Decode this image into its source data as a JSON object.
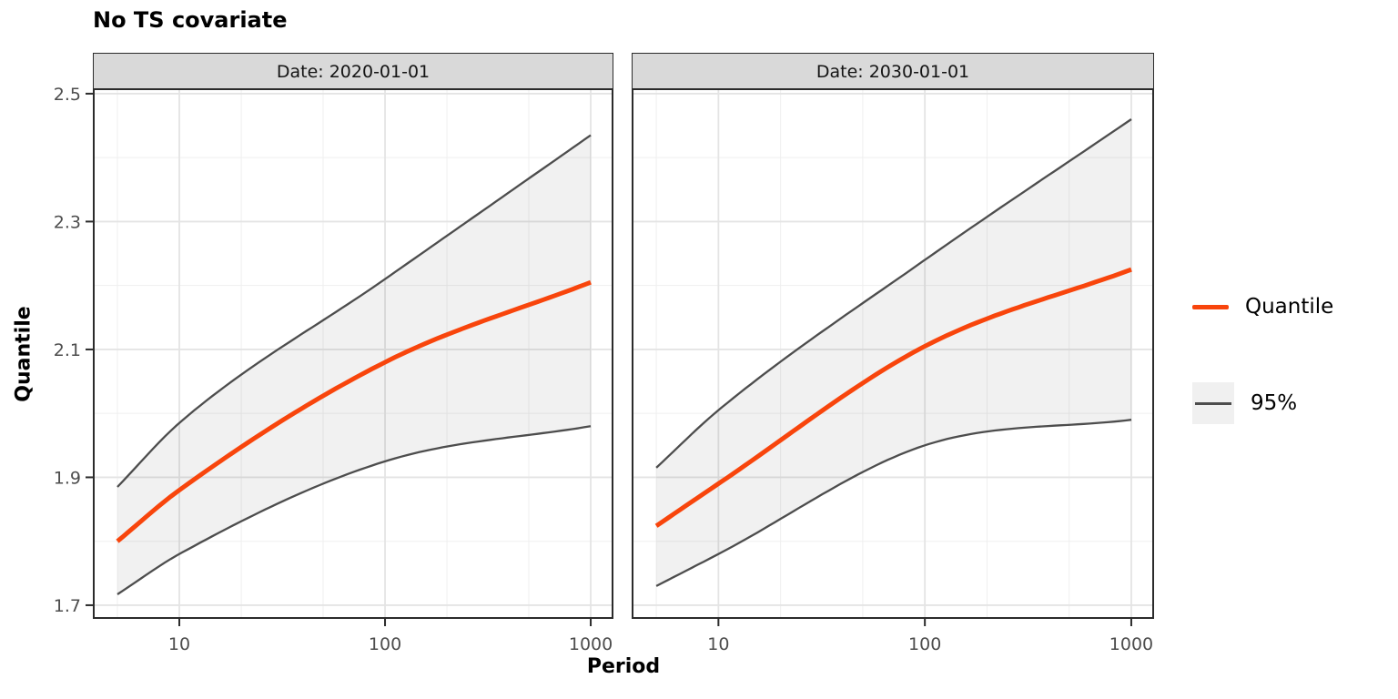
{
  "title": "No TS covariate",
  "axes": {
    "x": {
      "title": "Period",
      "scale": "log10",
      "tick_labels": [
        "10",
        "100",
        "1000"
      ]
    },
    "y": {
      "title": "Quantile",
      "tick_labels": [
        "1.7",
        "1.9",
        "2.1",
        "2.3",
        "2.5"
      ]
    }
  },
  "legend": {
    "position": "right",
    "items": [
      {
        "label": "Quantile",
        "type": "line",
        "color": "#F8450C"
      },
      {
        "label": "95%",
        "type": "ribbon",
        "line_color": "#4D4D4D",
        "fill": "#F0F0F0"
      }
    ]
  },
  "colors": {
    "quantile_line": "#F8450C",
    "ci_line": "#4D4D4D",
    "ribbon_fill": "rgba(0,0,0,0.055)",
    "strip_fill": "#D9D9D9",
    "panel_border": "#2b2b2b",
    "grid_major": "#E4E4E4",
    "grid_minor": "#EFEFEF",
    "tick_label": "#4D4D4D"
  },
  "chart_data": {
    "type": "line",
    "title": "No TS covariate",
    "xlabel": "Period",
    "ylabel": "Quantile",
    "x_scale": "log10",
    "x_breaks": [
      10,
      100,
      1000
    ],
    "x_minor_breaks": [
      5,
      20,
      50,
      200,
      500
    ],
    "y_breaks": [
      1.7,
      1.9,
      2.1,
      2.3,
      2.5
    ],
    "y_minor_breaks": [
      1.8,
      2.0,
      2.2,
      2.4
    ],
    "x_domain": [
      3.84,
      1277
    ],
    "y_domain": [
      1.68,
      2.507
    ],
    "x": [
      5,
      10,
      100,
      1000
    ],
    "facets": [
      {
        "label": "Date: 2020-01-01",
        "series": [
          {
            "name": "Quantile",
            "values": [
              1.8,
              1.88,
              2.08,
              2.205
            ]
          },
          {
            "name": "95% lower",
            "values": [
              1.717,
              1.78,
              1.925,
              1.98
            ]
          },
          {
            "name": "95% upper",
            "values": [
              1.885,
              1.985,
              2.21,
              2.435
            ]
          }
        ]
      },
      {
        "label": "Date: 2030-01-01",
        "series": [
          {
            "name": "Quantile",
            "values": [
              1.824,
              1.89,
              2.105,
              2.225
            ]
          },
          {
            "name": "95% lower",
            "values": [
              1.73,
              1.78,
              1.95,
              1.99
            ]
          },
          {
            "name": "95% upper",
            "values": [
              1.915,
              2.005,
              2.24,
              2.46
            ]
          }
        ]
      }
    ],
    "legend_position": "right"
  }
}
